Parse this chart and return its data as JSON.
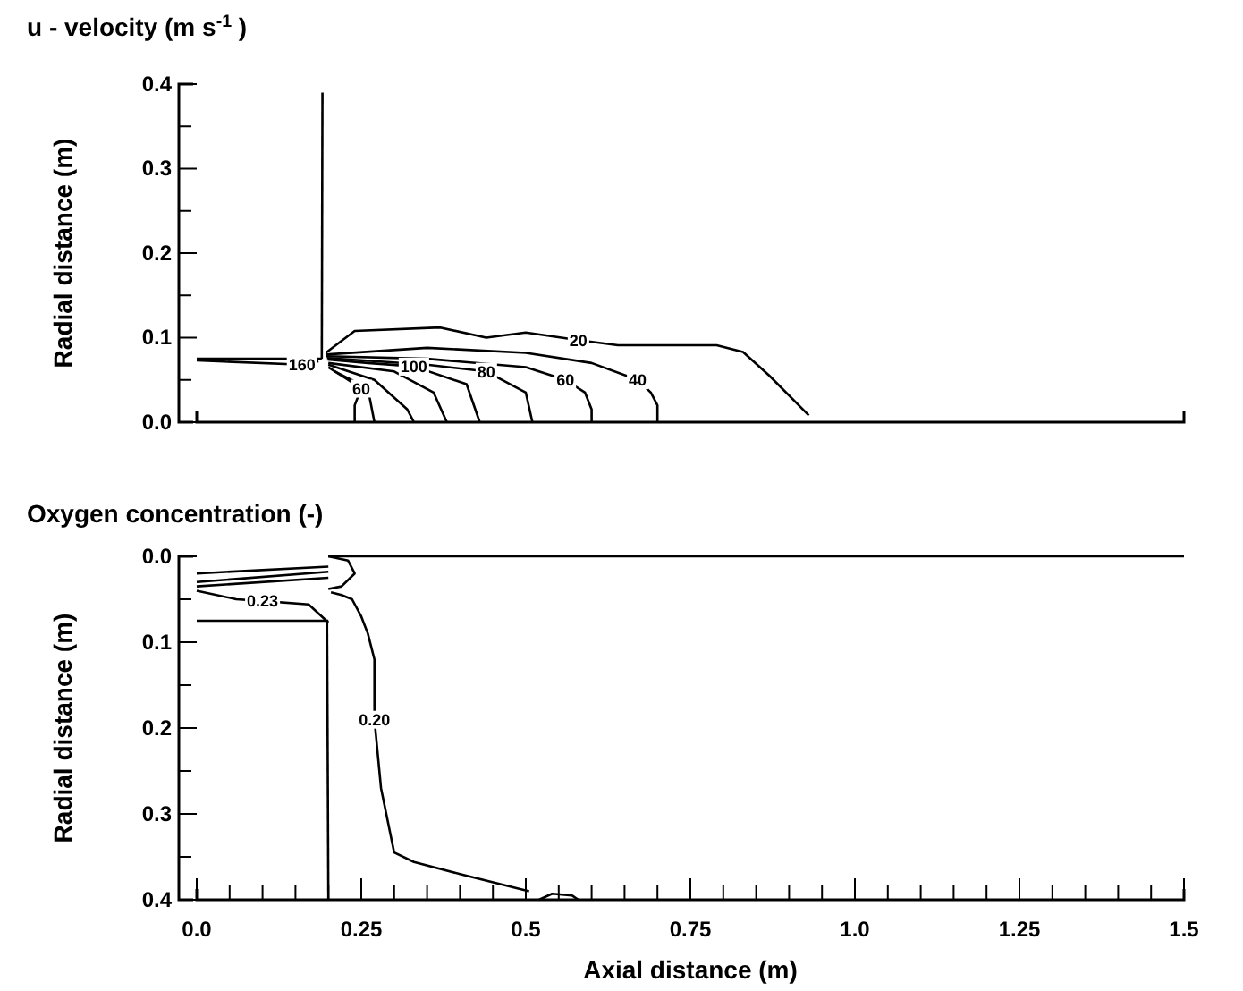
{
  "chart_data": [
    {
      "type": "line",
      "title": "u - velocity (m s$^{-1}$ )",
      "ylabel": "Radial distance (m)",
      "xlim": [
        0,
        1.5
      ],
      "ylim": [
        0,
        0.4
      ],
      "yticks": [
        {
          "value": 0,
          "label": "0.0"
        },
        {
          "value": 0.05,
          "label": null
        },
        {
          "value": 0.1,
          "label": "0.1"
        },
        {
          "value": 0.15,
          "label": null
        },
        {
          "value": 0.2,
          "label": "0.2"
        },
        {
          "value": 0.25,
          "label": null
        },
        {
          "value": 0.3,
          "label": "0.3"
        },
        {
          "value": 0.35,
          "label": null
        },
        {
          "value": 0.4,
          "label": "0.4"
        }
      ],
      "tick_labels": "y",
      "grid": false,
      "series": [
        {
          "color": "#000000",
          "x": [
            0,
            0.19
          ],
          "values": [
            0.075,
            0.075
          ]
        },
        {
          "color": "#000000",
          "x": [
            0.19,
            0.191
          ],
          "values": [
            0.075,
            0.39
          ]
        },
        {
          "name": "20",
          "color": "#000000",
          "x": [
            0.196,
            0.24,
            0.37,
            0.44,
            0.5,
            0.58,
            0.64,
            0.79,
            0.83,
            0.87,
            0.93
          ],
          "values": [
            0.082,
            0.108,
            0.112,
            0.1,
            0.106,
            0.097,
            0.091,
            0.091,
            0.083,
            0.055,
            0.008
          ]
        },
        {
          "name": "40",
          "color": "#000000",
          "x": [
            0.196,
            0.35,
            0.5,
            0.6,
            0.67,
            0.69,
            0.7,
            0.7,
            0.7
          ],
          "values": [
            0.08,
            0.088,
            0.082,
            0.07,
            0.05,
            0.035,
            0.02,
            0.008,
            0
          ]
        },
        {
          "name": "60",
          "color": "#000000",
          "x": [
            0.197,
            0.35,
            0.5,
            0.56,
            0.59,
            0.6,
            0.6
          ],
          "values": [
            0.078,
            0.075,
            0.065,
            0.05,
            0.035,
            0.015,
            0
          ]
        },
        {
          "name": "80",
          "color": "#000000",
          "x": [
            0.198,
            0.35,
            0.44,
            0.5,
            0.51
          ],
          "values": [
            0.076,
            0.068,
            0.06,
            0.035,
            0
          ]
        },
        {
          "name": "100",
          "color": "#000000",
          "x": [
            0.199,
            0.26,
            0.33,
            0.41,
            0.43
          ],
          "values": [
            0.074,
            0.07,
            0.066,
            0.045,
            0
          ]
        },
        {
          "color": "#000000",
          "x": [
            0.2,
            0.3,
            0.36,
            0.38
          ],
          "values": [
            0.07,
            0.06,
            0.035,
            0
          ]
        },
        {
          "color": "#000000",
          "x": [
            0.2,
            0.27,
            0.32,
            0.33
          ],
          "values": [
            0.068,
            0.05,
            0.015,
            0
          ]
        },
        {
          "color": "#000000",
          "x": [
            0.21,
            0.26,
            0.27
          ],
          "values": [
            0.06,
            0.04,
            0
          ]
        },
        {
          "name": "60",
          "color": "#000000",
          "x": [
            0.2,
            0.23,
            0.25,
            0.24,
            0.24
          ],
          "values": [
            0.065,
            0.05,
            0.04,
            0.02,
            0
          ]
        },
        {
          "name": "160",
          "color": "#000000",
          "x": [
            0,
            0.16,
            0.185
          ],
          "values": [
            0.073,
            0.068,
            0.072
          ]
        }
      ]
    },
    {
      "type": "line",
      "title": "Oxygen concentration (-)",
      "xlabel": "Axial distance (m)",
      "ylabel": "Radial distance (m)",
      "xlim": [
        0,
        1.5
      ],
      "ylim": [
        0.4,
        0
      ],
      "xticks": [
        {
          "value": 0,
          "label": "0.0"
        },
        {
          "value": 0.05,
          "label": null
        },
        {
          "value": 0.1,
          "label": null
        },
        {
          "value": 0.15,
          "label": null
        },
        {
          "value": 0.2,
          "label": null
        },
        {
          "value": 0.25,
          "label": "0.25"
        },
        {
          "value": 0.3,
          "label": null
        },
        {
          "value": 0.35,
          "label": null
        },
        {
          "value": 0.4,
          "label": null
        },
        {
          "value": 0.45,
          "label": null
        },
        {
          "value": 0.5,
          "label": "0.5"
        },
        {
          "value": 0.55,
          "label": null
        },
        {
          "value": 0.6,
          "label": null
        },
        {
          "value": 0.65,
          "label": null
        },
        {
          "value": 0.7,
          "label": null
        },
        {
          "value": 0.75,
          "label": "0.75"
        },
        {
          "value": 0.8,
          "label": null
        },
        {
          "value": 0.85,
          "label": null
        },
        {
          "value": 0.9,
          "label": null
        },
        {
          "value": 0.95,
          "label": null
        },
        {
          "value": 1,
          "label": "1.0"
        },
        {
          "value": 1.05,
          "label": null
        },
        {
          "value": 1.1,
          "label": null
        },
        {
          "value": 1.15,
          "label": null
        },
        {
          "value": 1.2,
          "label": null
        },
        {
          "value": 1.25,
          "label": "1.25"
        },
        {
          "value": 1.3,
          "label": null
        },
        {
          "value": 1.35,
          "label": null
        },
        {
          "value": 1.4,
          "label": null
        },
        {
          "value": 1.45,
          "label": null
        },
        {
          "value": 1.5,
          "label": "1.5"
        }
      ],
      "yticks": [
        {
          "value": 0,
          "label": "0.0"
        },
        {
          "value": 0.05,
          "label": null
        },
        {
          "value": 0.1,
          "label": "0.1"
        },
        {
          "value": 0.15,
          "label": null
        },
        {
          "value": 0.2,
          "label": "0.2"
        },
        {
          "value": 0.25,
          "label": null
        },
        {
          "value": 0.3,
          "label": "0.3"
        },
        {
          "value": 0.35,
          "label": null
        },
        {
          "value": 0.4,
          "label": "0.4"
        }
      ],
      "grid": false,
      "series": [
        {
          "color": "#000000",
          "x": [
            0.2,
            1.5
          ],
          "values": [
            0,
            0
          ]
        },
        {
          "color": "#000000",
          "x": [
            0,
            0.2
          ],
          "values": [
            0.075,
            0.075
          ]
        },
        {
          "color": "#000000",
          "x": [
            0.198,
            0.2
          ],
          "values": [
            0.075,
            0.4
          ]
        },
        {
          "name": "0.23",
          "color": "#000000",
          "x": [
            0,
            0.06,
            0.1,
            0.17,
            0.2
          ],
          "values": [
            0.04,
            0.05,
            0.052,
            0.056,
            0.077
          ]
        },
        {
          "name": "0.20",
          "color": "#000000",
          "x": [
            0.204,
            0.22,
            0.236,
            0.25,
            0.26,
            0.27,
            0.27,
            0.275,
            0.28,
            0.3,
            0.33,
            0.4,
            0.505
          ],
          "values": [
            0.042,
            0.045,
            0.05,
            0.07,
            0.09,
            0.12,
            0.19,
            0.23,
            0.27,
            0.345,
            0.356,
            0.37,
            0.39
          ]
        },
        {
          "color": "#000000",
          "x": [
            0,
            0.2
          ],
          "values": [
            0.02,
            0.012
          ]
        },
        {
          "color": "#000000",
          "x": [
            0,
            0.2
          ],
          "values": [
            0.03,
            0.018
          ]
        },
        {
          "color": "#000000",
          "x": [
            0,
            0.2
          ],
          "values": [
            0.035,
            0.025
          ]
        },
        {
          "color": "#000000",
          "x": [
            0.2,
            0.23,
            0.24,
            0.22,
            0.2
          ],
          "values": [
            0,
            0.005,
            0.02,
            0.035,
            0.038
          ]
        },
        {
          "color": "#000000",
          "x": [
            0.52,
            0.54,
            0.57,
            0.58
          ],
          "values": [
            0.4,
            0.393,
            0.395,
            0.4
          ]
        }
      ]
    }
  ]
}
